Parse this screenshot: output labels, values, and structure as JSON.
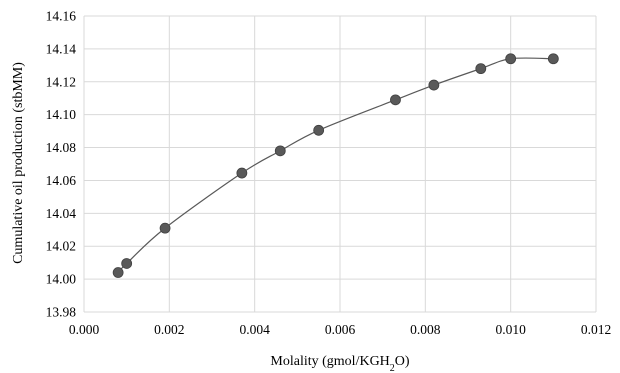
{
  "chart_data": {
    "type": "scatter",
    "title": "",
    "xlabel": "Molality (gmol/KGH2O)",
    "xlabel_parts": {
      "main": "Molality (gmol/KGH",
      "sub": "2",
      "tail": "O)"
    },
    "ylabel": "Cumulative oil production (stbMM)",
    "xlim": [
      0,
      0.012
    ],
    "ylim": [
      13.98,
      14.16
    ],
    "xticks": [
      0.0,
      0.002,
      0.004,
      0.006,
      0.008,
      0.01,
      0.012
    ],
    "xtick_labels": [
      "0.000",
      "0.002",
      "0.004",
      "0.006",
      "0.008",
      "0.010",
      "0.012"
    ],
    "yticks": [
      13.98,
      14.0,
      14.02,
      14.04,
      14.06,
      14.08,
      14.1,
      14.12,
      14.14,
      14.16
    ],
    "ytick_labels": [
      "13.98",
      "14.00",
      "14.02",
      "14.04",
      "14.06",
      "14.08",
      "14.10",
      "14.12",
      "14.14",
      "14.16"
    ],
    "grid": true,
    "smoothed_line": true,
    "series": [
      {
        "x": [
          0.0008,
          0.001,
          0.0019,
          0.0037,
          0.0046,
          0.0055,
          0.0073,
          0.0082,
          0.0093,
          0.01,
          0.011
        ],
        "y": [
          14.004,
          14.0095,
          14.031,
          14.0645,
          14.078,
          14.0905,
          14.109,
          14.118,
          14.128,
          14.134,
          14.134
        ]
      }
    ],
    "colors": {
      "marker": "#595959",
      "line": "#595959",
      "grid": "#d9d9d9"
    }
  }
}
